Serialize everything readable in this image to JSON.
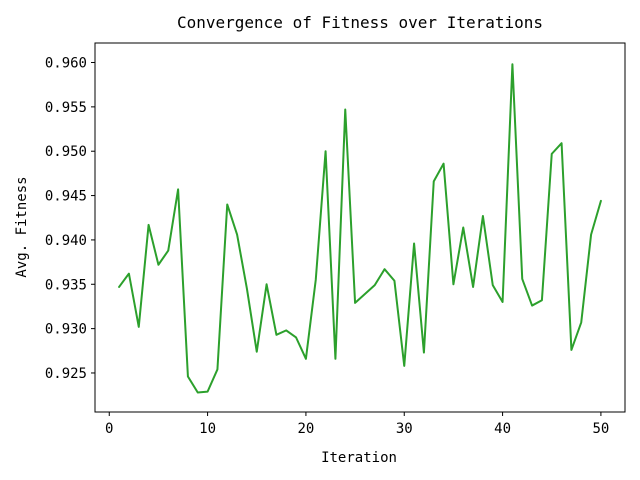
{
  "chart_data": {
    "type": "line",
    "title": "Convergence of Fitness over Iterations",
    "xlabel": "Iteration",
    "ylabel": "Avg. Fitness",
    "xlim": [
      -1.45,
      52.45
    ],
    "ylim": [
      0.9206,
      0.9622
    ],
    "xticks": [
      0,
      10,
      20,
      30,
      40,
      50
    ],
    "yticks": [
      0.925,
      0.93,
      0.935,
      0.94,
      0.945,
      0.95,
      0.955,
      0.96
    ],
    "grid": false,
    "series": [
      {
        "color": "#2ca02c",
        "x": [
          1,
          2,
          3,
          4,
          5,
          6,
          7,
          8,
          9,
          10,
          11,
          12,
          13,
          14,
          15,
          16,
          17,
          18,
          19,
          20,
          21,
          22,
          23,
          24,
          25,
          26,
          27,
          28,
          29,
          30,
          31,
          32,
          33,
          34,
          35,
          36,
          37,
          38,
          39,
          40,
          41,
          42,
          43,
          44,
          45,
          46,
          47,
          48,
          49,
          50
        ],
        "y": [
          0.9347,
          0.9362,
          0.9302,
          0.9417,
          0.9372,
          0.9388,
          0.9457,
          0.9246,
          0.9228,
          0.9229,
          0.9254,
          0.944,
          0.9406,
          0.9345,
          0.9274,
          0.935,
          0.9293,
          0.9298,
          0.929,
          0.9266,
          0.9355,
          0.95,
          0.9266,
          0.9547,
          0.9329,
          0.9339,
          0.9349,
          0.9367,
          0.9354,
          0.9258,
          0.9396,
          0.9273,
          0.9466,
          0.9486,
          0.935,
          0.9414,
          0.9347,
          0.9427,
          0.9349,
          0.933,
          0.9598,
          0.9356,
          0.9326,
          0.9332,
          0.9497,
          0.9509,
          0.9276,
          0.9307,
          0.9406,
          0.9444
        ]
      }
    ]
  }
}
